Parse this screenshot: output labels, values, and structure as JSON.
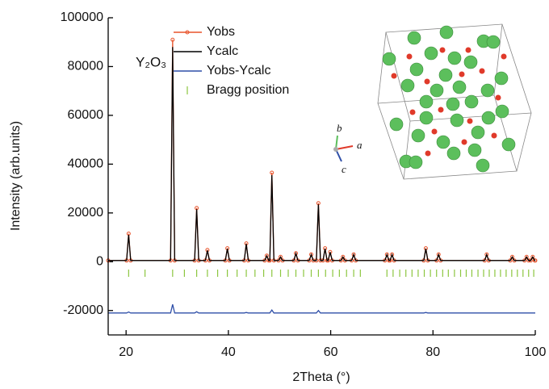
{
  "chart_data": {
    "type": "line",
    "xlabel": "2Theta (°)",
    "ylabel": "Intensity (arb.units)",
    "annotation": "Y₂O₃",
    "crystal_axes": [
      "a",
      "b",
      "c"
    ],
    "xlim": [
      16.5,
      100
    ],
    "xticks": [
      20,
      40,
      60,
      80,
      100
    ],
    "ylim": [
      -30000,
      100000
    ],
    "yticks": [
      -20000,
      0,
      20000,
      40000,
      60000,
      80000,
      100000
    ],
    "x": [
      16.5,
      20.1,
      20.5,
      20.9,
      28.7,
      29.1,
      29.5,
      33.4,
      33.8,
      34.2,
      35.5,
      35.9,
      36.3,
      39.4,
      39.8,
      40.2,
      43.1,
      43.5,
      43.9,
      47.1,
      47.5,
      47.9,
      48.1,
      48.5,
      48.9,
      49.8,
      50.2,
      50.6,
      52.8,
      53.2,
      53.6,
      55.8,
      56.2,
      56.6,
      57.2,
      57.6,
      58.0,
      58.5,
      58.9,
      59.3,
      59.5,
      59.9,
      60.3,
      62.0,
      62.4,
      62.8,
      64.1,
      64.5,
      64.9,
      70.6,
      71.0,
      71.4,
      71.6,
      72.0,
      72.4,
      78.2,
      78.6,
      79.0,
      80.7,
      81.1,
      81.5,
      90.1,
      90.5,
      90.9,
      95.1,
      95.5,
      95.9,
      97.9,
      98.3,
      98.7,
      99.1,
      99.5,
      99.9,
      100
    ],
    "series": [
      {
        "name": "Yobs",
        "color": "#e8542c",
        "markers": true,
        "values": [
          500,
          500,
          11500,
          500,
          500,
          91000,
          500,
          500,
          22000,
          500,
          500,
          4800,
          500,
          500,
          5500,
          500,
          500,
          7500,
          500,
          500,
          2500,
          500,
          500,
          36500,
          500,
          500,
          2000,
          500,
          500,
          3500,
          500,
          500,
          3000,
          500,
          500,
          24000,
          500,
          500,
          5500,
          500,
          500,
          4000,
          500,
          500,
          2000,
          500,
          500,
          3000,
          500,
          500,
          3000,
          500,
          500,
          3000,
          500,
          500,
          5500,
          500,
          500,
          3000,
          500,
          500,
          3000,
          500,
          500,
          2000,
          500,
          500,
          2000,
          500,
          500,
          2000,
          500,
          500
        ]
      },
      {
        "name": "Ycalc",
        "color": "#000000",
        "markers": false,
        "values": [
          500,
          500,
          11000,
          500,
          500,
          88000,
          500,
          500,
          21500,
          500,
          500,
          4600,
          500,
          500,
          5300,
          500,
          500,
          7300,
          500,
          500,
          2400,
          500,
          500,
          35500,
          500,
          500,
          1900,
          500,
          500,
          3400,
          500,
          500,
          2900,
          500,
          500,
          23500,
          500,
          500,
          5300,
          500,
          500,
          3900,
          500,
          500,
          1900,
          500,
          500,
          2900,
          500,
          500,
          2900,
          500,
          500,
          2900,
          500,
          500,
          5300,
          500,
          500,
          2900,
          500,
          500,
          2900,
          500,
          500,
          1900,
          500,
          500,
          1900,
          500,
          500,
          1900,
          500,
          500
        ]
      },
      {
        "name": "Yobs-Ycalc",
        "color": "#2f4fa8",
        "markers": false,
        "values": [
          -21000,
          -21000,
          -20600,
          -21000,
          -21000,
          -17500,
          -21000,
          -21000,
          -20500,
          -21000,
          -21000,
          -21000,
          -21000,
          -21000,
          -21000,
          -21000,
          -21000,
          -20800,
          -21000,
          -21000,
          -21000,
          -21000,
          -21000,
          -19800,
          -21000,
          -21000,
          -21000,
          -21000,
          -21000,
          -21000,
          -21000,
          -21000,
          -21000,
          -21000,
          -21000,
          -20000,
          -21000,
          -21000,
          -21000,
          -21000,
          -21000,
          -21000,
          -21000,
          -21000,
          -21000,
          -21000,
          -21000,
          -21000,
          -21000,
          -21000,
          -21000,
          -21000,
          -21000,
          -21000,
          -21000,
          -21000,
          -20800,
          -21000,
          -21000,
          -21000,
          -21000,
          -21000,
          -21000,
          -21000,
          -21000,
          -21000,
          -21000,
          -21000,
          -21000,
          -21000,
          -21000,
          -21000,
          -21000,
          -21000
        ]
      }
    ],
    "bragg": {
      "name": "Bragg position",
      "color": "#8cc63f",
      "x": [
        20.5,
        23.7,
        29.1,
        31.4,
        33.8,
        35.9,
        37.9,
        39.8,
        41.7,
        43.5,
        45.2,
        46.9,
        48.5,
        50.2,
        51.7,
        53.2,
        54.7,
        56.2,
        57.6,
        59.0,
        60.4,
        61.7,
        63.1,
        64.5,
        65.8,
        71.0,
        72.2,
        73.5,
        74.7,
        75.9,
        77.1,
        78.3,
        79.5,
        80.7,
        81.9,
        83.0,
        84.2,
        85.4,
        86.5,
        87.6,
        88.8,
        89.9,
        91.0,
        92.1,
        93.2,
        94.3,
        95.4,
        96.5,
        97.6,
        98.7,
        99.7
      ]
    }
  }
}
